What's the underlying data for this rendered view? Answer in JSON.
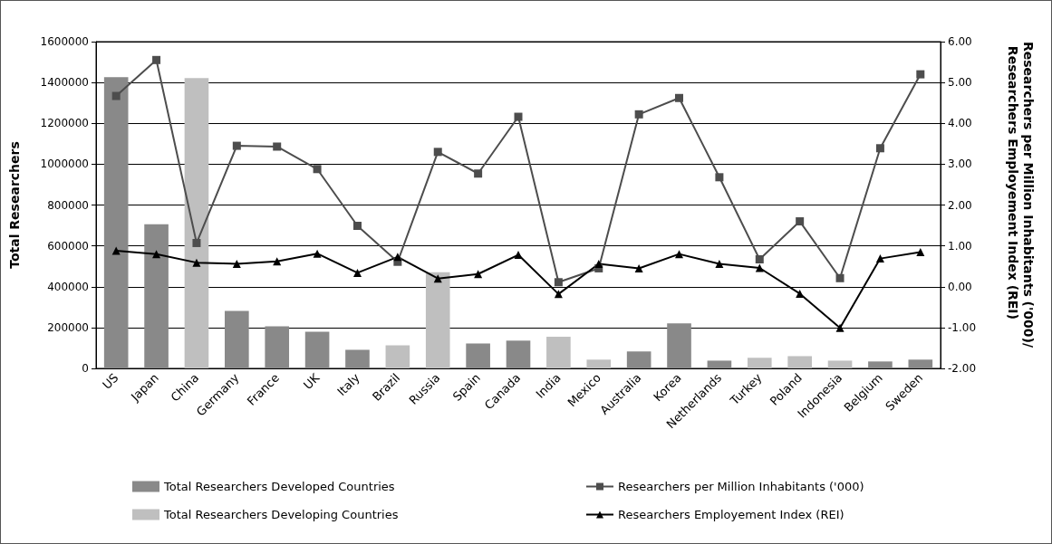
{
  "chart_data": {
    "type": "bar",
    "categories": [
      "US",
      "Japan",
      "China",
      "Germany",
      "France",
      "UK",
      "Italy",
      "Brazil",
      "Russia",
      "Spain",
      "Canada",
      "India",
      "Mexico",
      "Australia",
      "Korea",
      "Netherlands",
      "Turkey",
      "Poland",
      "Indonesia",
      "Belgium",
      "Sweden"
    ],
    "series": [
      {
        "name": "Total Researchers Developed Countries",
        "color": "#898989",
        "values": [
          1426000,
          706000,
          null,
          281000,
          206000,
          180000,
          91000,
          null,
          null,
          122000,
          136000,
          null,
          null,
          83000,
          220000,
          38000,
          null,
          null,
          null,
          34000,
          43000
        ]
      },
      {
        "name": "Total Researchers Developing Countries",
        "color": "#bfbfbf",
        "values": [
          null,
          null,
          1422000,
          null,
          null,
          null,
          null,
          113000,
          471000,
          null,
          null,
          155000,
          43000,
          null,
          null,
          null,
          52000,
          60000,
          38000,
          null,
          null
        ]
      },
      {
        "name": "Researchers per Million Inhabitants ('000)",
        "type": "line",
        "axis": "y2",
        "marker": "square",
        "color": "#4d4d4d",
        "values": [
          4.67,
          5.55,
          1.07,
          3.45,
          3.43,
          2.88,
          1.49,
          0.61,
          3.3,
          2.77,
          4.16,
          0.11,
          0.45,
          4.22,
          4.62,
          2.68,
          0.67,
          1.6,
          0.21,
          3.39,
          5.2
        ]
      },
      {
        "name": "Researchers Employement Index (REI)",
        "type": "line",
        "axis": "y2",
        "marker": "triangle",
        "color": "#000000",
        "values": [
          0.88,
          0.8,
          0.59,
          0.56,
          0.62,
          0.81,
          0.34,
          0.73,
          0.2,
          0.31,
          0.78,
          -0.18,
          0.56,
          0.45,
          0.8,
          0.56,
          0.46,
          -0.17,
          -1.01,
          0.69,
          0.85
        ]
      }
    ],
    "ylabel": "Total Researchers",
    "y2label": "Researchers per Million Inhabitants ('000)/ Researchers Employement Index (REI)",
    "ylim": [
      0,
      1600000
    ],
    "yticks": [
      0,
      200000,
      400000,
      600000,
      800000,
      1000000,
      1200000,
      1400000,
      1600000
    ],
    "y2lim": [
      -2,
      6
    ],
    "y2ticks": [
      {
        "value": -2,
        "label": "-2.00"
      },
      {
        "value": -1,
        "label": "-1.00"
      },
      {
        "value": 0,
        "label": "0.00"
      },
      {
        "value": 1,
        "label": "1.00"
      },
      {
        "value": 2,
        "label": "2.00"
      },
      {
        "value": 3,
        "label": "3.00"
      },
      {
        "value": 4,
        "label": "4.00"
      },
      {
        "value": 5,
        "label": "5.00"
      },
      {
        "value": 6,
        "label": "6.00"
      }
    ],
    "grid": "y",
    "legend": "bottom",
    "line_style": "solid"
  }
}
